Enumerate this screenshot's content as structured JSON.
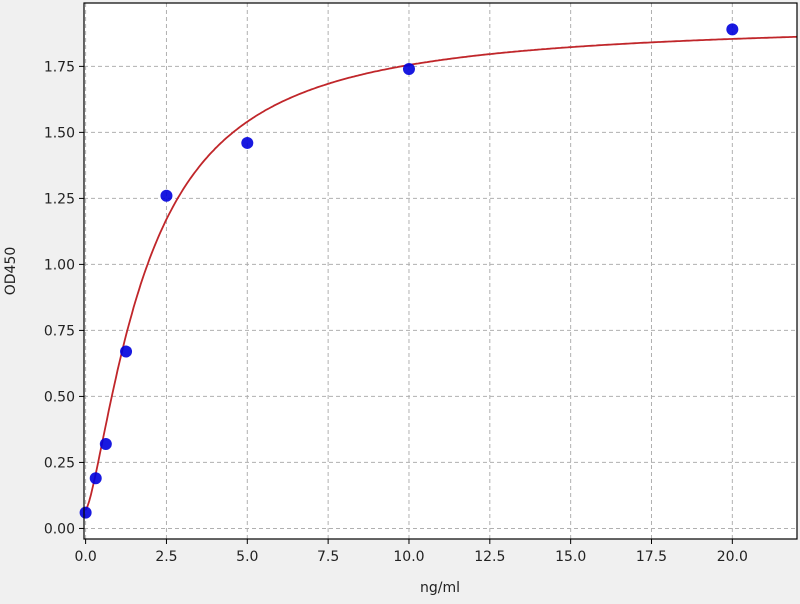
{
  "chart_data": {
    "type": "scatter",
    "title": "",
    "xlabel": "ng/ml",
    "ylabel": "OD450",
    "xlim": [
      -0.05,
      22.0
    ],
    "ylim": [
      -0.04,
      1.99
    ],
    "xticks": [
      "0.0",
      "2.5",
      "5.0",
      "7.5",
      "10.0",
      "12.5",
      "15.0",
      "17.5",
      "20.0"
    ],
    "yticks": [
      "0.00",
      "0.25",
      "0.50",
      "0.75",
      "1.00",
      "1.25",
      "1.50",
      "1.75"
    ],
    "grid": true,
    "series": [
      {
        "kind": "points",
        "color": "#0000dd",
        "x": [
          0,
          0.3125,
          0.625,
          1.25,
          2.5,
          5,
          10,
          20
        ],
        "y": [
          0.06,
          0.19,
          0.32,
          0.67,
          1.26,
          1.46,
          1.74,
          1.89
        ]
      },
      {
        "kind": "fitted-curve",
        "color": "#c0262a"
      }
    ]
  }
}
